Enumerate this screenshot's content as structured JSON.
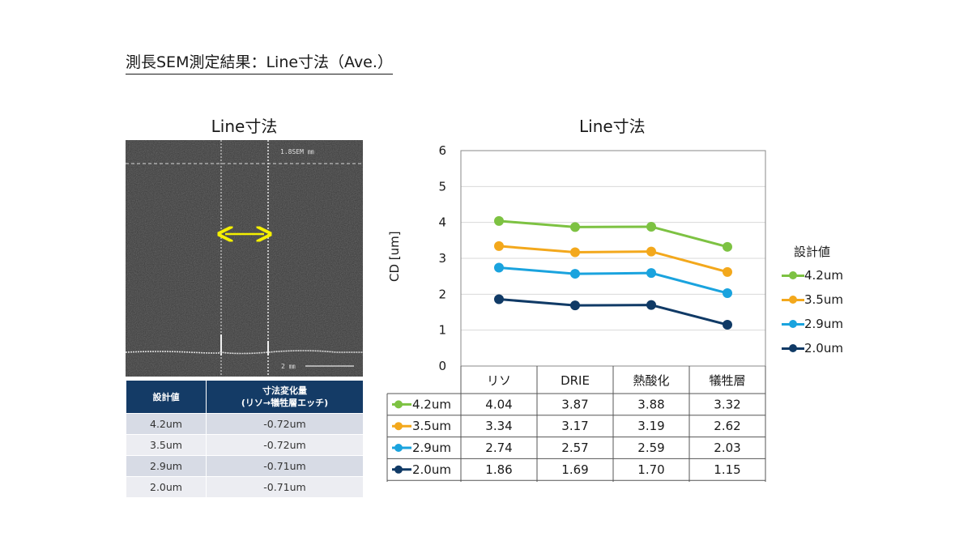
{
  "page": {
    "title": "測長SEM測定結果：Line寸法（Ave.）"
  },
  "sem_image": {
    "title": "Line寸法",
    "scale_label": "1.8SEM ㎜",
    "bar_label": "2 ㎜"
  },
  "dimension_table": {
    "headers": [
      "設計値",
      "寸法変化量",
      "(リソ→犠牲層エッチ)"
    ],
    "rows": [
      {
        "design": "4.2um",
        "change": "-0.72um"
      },
      {
        "design": "3.5um",
        "change": "-0.72um"
      },
      {
        "design": "2.9um",
        "change": "-0.71um"
      },
      {
        "design": "2.0um",
        "change": "-0.71um"
      }
    ]
  },
  "colors": {
    "header_bg": "#143b66",
    "series": [
      "#7dc242",
      "#f3a81c",
      "#1aa3de",
      "#103a66"
    ]
  },
  "chart_data": {
    "type": "line",
    "title": "Line寸法",
    "ylabel": "CD [um]",
    "xlabel": "",
    "ylim": [
      0,
      6
    ],
    "yticks": [
      0,
      1,
      2,
      3,
      4,
      5,
      6
    ],
    "grid": true,
    "legend_title": "設計値",
    "legend_position": "right",
    "categories": [
      "リソ",
      "DRIE",
      "熱酸化",
      "犠牲層"
    ],
    "series": [
      {
        "name": "4.2um",
        "values": [
          4.04,
          3.87,
          3.88,
          3.32
        ],
        "labels": [
          "4.04",
          "3.87",
          "3.88",
          "3.32"
        ]
      },
      {
        "name": "3.5um",
        "values": [
          3.34,
          3.17,
          3.19,
          2.62
        ],
        "labels": [
          "3.34",
          "3.17",
          "3.19",
          "2.62"
        ]
      },
      {
        "name": "2.9um",
        "values": [
          2.74,
          2.57,
          2.59,
          2.03
        ],
        "labels": [
          "2.74",
          "2.57",
          "2.59",
          "2.03"
        ]
      },
      {
        "name": "2.0um",
        "values": [
          1.86,
          1.69,
          1.7,
          1.15
        ],
        "labels": [
          "1.86",
          "1.69",
          "1.70",
          "1.15"
        ]
      }
    ]
  }
}
